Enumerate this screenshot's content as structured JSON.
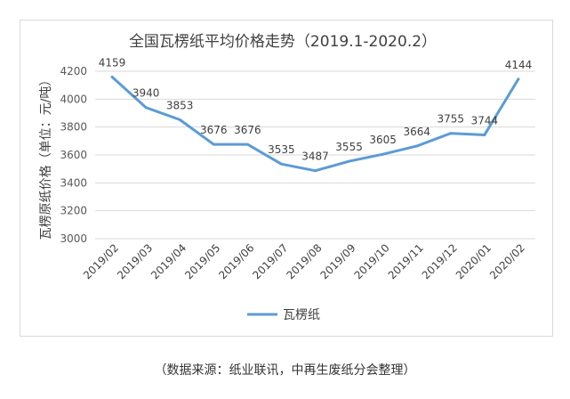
{
  "chart_data": {
    "type": "line",
    "title": "全国瓦楞纸平均价格走势（2019.1-2020.2）",
    "ylabel": "瓦楞原纸价格（单位：元/吨）",
    "xlabel": "",
    "categories": [
      "2019/02",
      "2019/03",
      "2019/04",
      "2019/05",
      "2019/06",
      "2019/07",
      "2019/08",
      "2019/09",
      "2019/10",
      "2019/11",
      "2019/12",
      "2020/01",
      "2020/02"
    ],
    "series": [
      {
        "name": "瓦楞纸",
        "values": [
          4159,
          3940,
          3853,
          3676,
          3676,
          3535,
          3487,
          3555,
          3605,
          3664,
          3755,
          3744,
          4144
        ],
        "labels": [
          "4159",
          "3940",
          "3853",
          "3676",
          "3676",
          "3535",
          "3487",
          "3555",
          "3605",
          "3664",
          "3755",
          "3744",
          "4144"
        ]
      }
    ],
    "yticks": [
      "3000",
      "3200",
      "3400",
      "3600",
      "3800",
      "4000",
      "4200"
    ],
    "ylim": [
      3000,
      4200
    ],
    "grid": true,
    "legend_position": "bottom",
    "color": "#5b9bd5"
  },
  "source_note": "（数据来源：纸业联讯，中再生废纸分会整理）"
}
